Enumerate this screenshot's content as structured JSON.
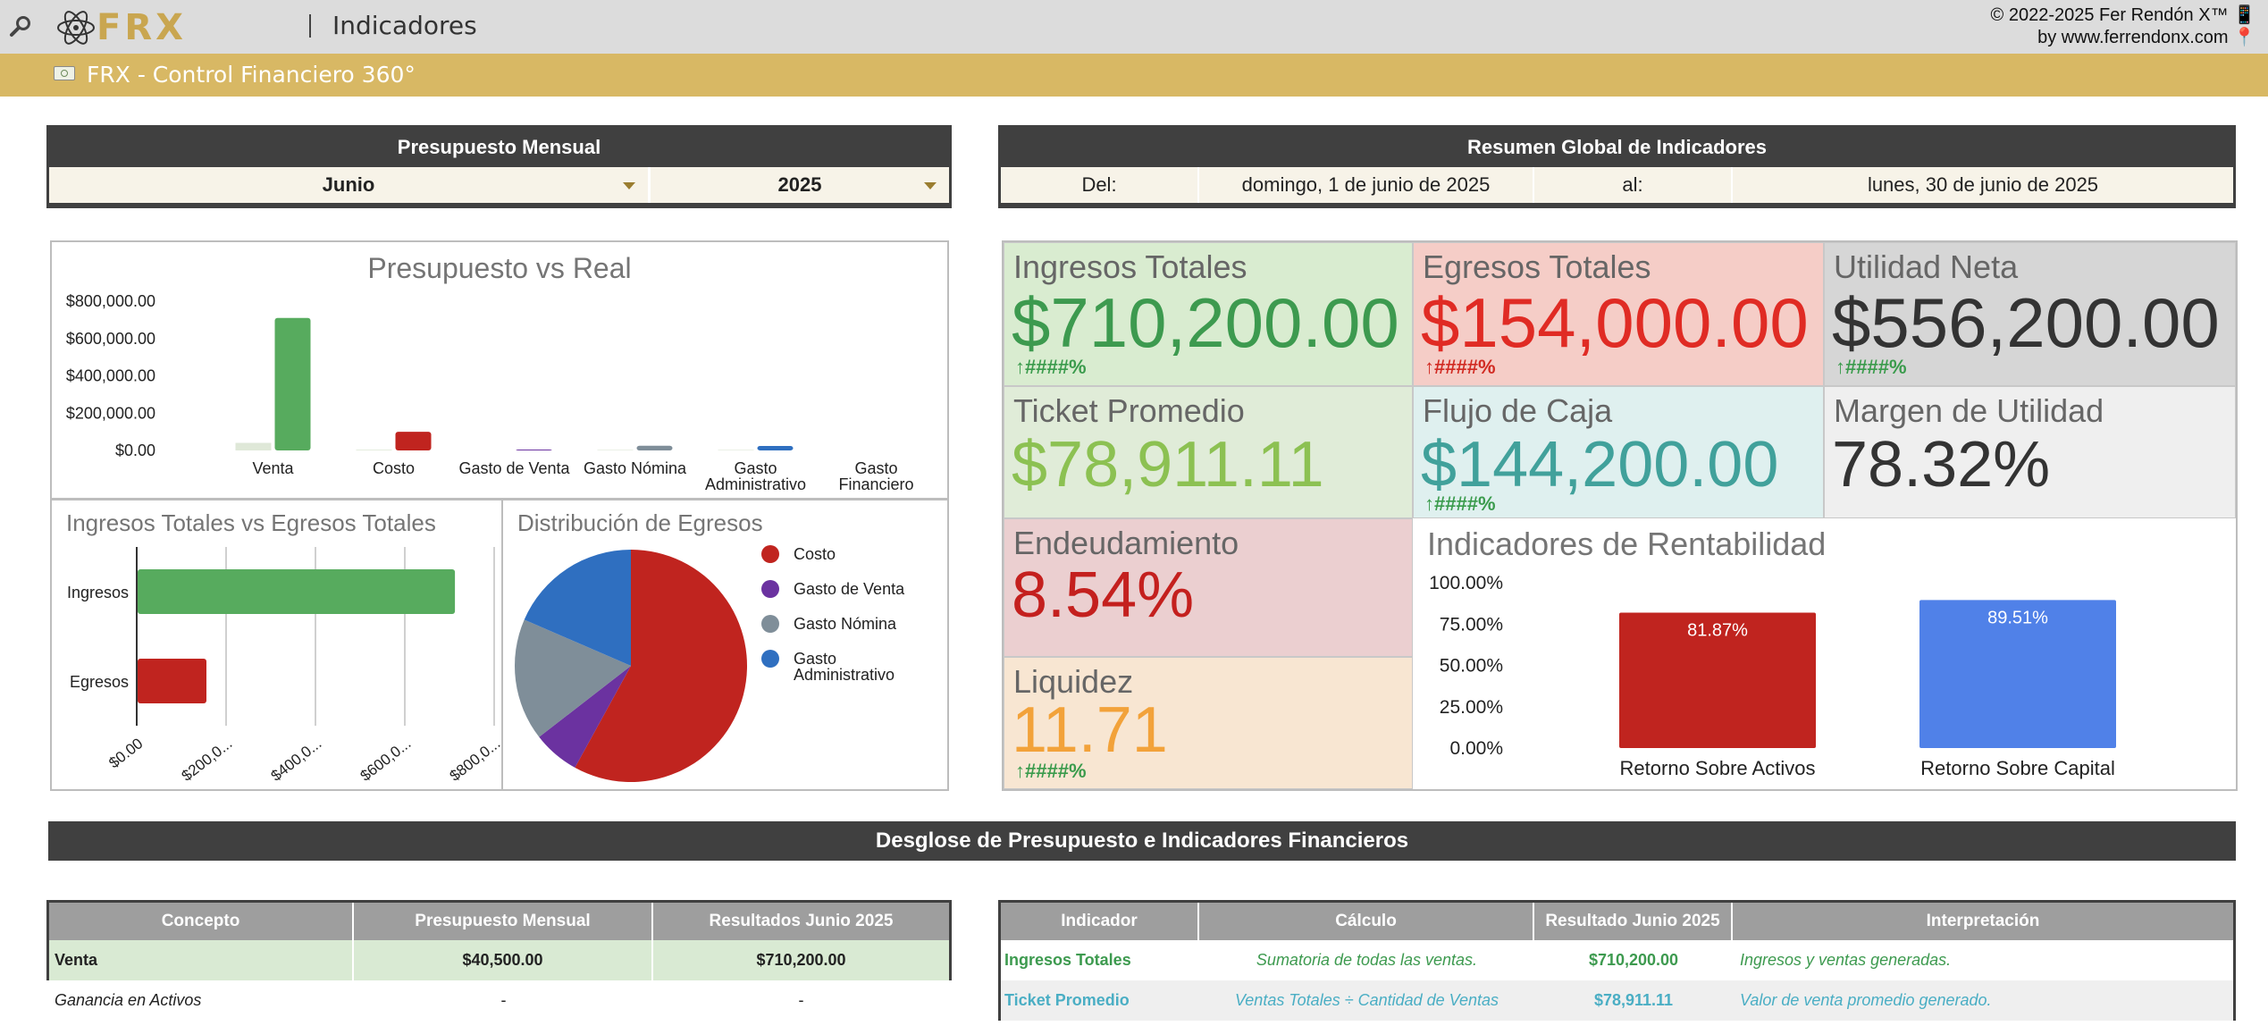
{
  "app": {
    "title": "Indicadores",
    "logo": "FRX",
    "subtitle": "FRX - Control Financiero 360°",
    "copyright_line1": "© 2022-2025 Fer Rendón X™ 📱",
    "copyright_line2": "by www.ferrendonx.com 📍",
    "icons": {
      "search": "magnifier-icon",
      "logo": "atom-icon",
      "subtitle": "money-icon"
    }
  },
  "presupuesto": {
    "header": "Presupuesto Mensual",
    "month": "Junio",
    "year": "2025"
  },
  "resumen": {
    "header": "Resumen Global de Indicadores",
    "del_label": "Del:",
    "del_value": "domingo, 1 de junio de 2025",
    "al_label": "al:",
    "al_value": "lunes, 30 de junio de 2025"
  },
  "kpis": {
    "ingresos": {
      "label": "Ingresos Totales",
      "value": "$710,200.00",
      "trend": "####%"
    },
    "egresos": {
      "label": "Egresos Totales",
      "value": "$154,000.00",
      "trend": "####%"
    },
    "utilidad": {
      "label": "Utilidad Neta",
      "value": "$556,200.00",
      "trend": "####%"
    },
    "ticket": {
      "label": "Ticket Promedio",
      "value": "$78,911.11"
    },
    "flujo": {
      "label": "Flujo de Caja",
      "value": "$144,200.00",
      "trend": "####%"
    },
    "margen": {
      "label": "Margen de Utilidad",
      "value": "78.32%"
    },
    "endeudamiento": {
      "label": "Endeudamiento",
      "value": "8.54%"
    },
    "liquidez": {
      "label": "Liquidez",
      "value": "11.71",
      "trend": "####%"
    }
  },
  "colors": {
    "gold": "#d8b864",
    "dark": "#404040",
    "green": "#57ab5e",
    "red": "#c0241f",
    "gray_series": "#7f8e99",
    "blue": "#2f6fc0",
    "purple": "#6b32a0"
  },
  "chart_data": [
    {
      "type": "bar",
      "title": "Presupuesto vs Real",
      "categories": [
        "Venta",
        "Costo",
        "Gasto de Venta",
        "Gasto Nómina",
        "Gasto Administrativo",
        "Gasto Financiero"
      ],
      "category_lines": [
        [
          "Venta"
        ],
        [
          "Costo"
        ],
        [
          "Gasto de Venta"
        ],
        [
          "Gasto Nómina"
        ],
        [
          "Gasto",
          "Administrativo"
        ],
        [
          "Gasto",
          "Financiero"
        ]
      ],
      "series": [
        {
          "values": [
            40500,
            4000,
            0,
            3000,
            3000,
            0
          ],
          "color": "#dfe8d8"
        },
        {
          "values": [
            710200,
            100000,
            5000,
            25000,
            24000,
            0
          ],
          "color_by_category": [
            "#57ab5e",
            "#c0241f",
            "#6b32a0",
            "#7f8e99",
            "#2f6fc0",
            "#888888"
          ]
        }
      ],
      "yticks": [
        "$0.00",
        "$200,000.00",
        "$400,000.00",
        "$600,000.00",
        "$800,000.00"
      ],
      "ylim": [
        0,
        800000
      ],
      "grid": false
    },
    {
      "type": "bar",
      "orientation": "horizontal",
      "title": "Ingresos Totales vs Egresos Totales",
      "categories": [
        "Ingresos",
        "Egresos"
      ],
      "values": [
        710200,
        154000
      ],
      "colors": [
        "#57ab5e",
        "#c0241f"
      ],
      "xticks": [
        "$0.00",
        "$200,0...",
        "$400,0...",
        "$600,0...",
        "$800,0..."
      ],
      "xlim": [
        0,
        800000
      ],
      "grid": true
    },
    {
      "type": "pie",
      "title": "Distribución de Egresos",
      "labels": [
        "Costo",
        "Gasto de Venta",
        "Gasto Nómina",
        "Gasto Administrativo"
      ],
      "legend_lines": [
        [
          "Costo"
        ],
        [
          "Gasto de Venta"
        ],
        [
          "Gasto Nómina"
        ],
        [
          "Gasto",
          "Administrativo"
        ]
      ],
      "values": [
        58,
        6.5,
        17,
        18.5
      ],
      "colors": [
        "#c0241f",
        "#6b32a0",
        "#7f8e99",
        "#2f6fc0"
      ],
      "legend": "right"
    },
    {
      "type": "bar",
      "title": "Indicadores de Rentabilidad",
      "categories": [
        "Retorno Sobre Activos",
        "Retorno Sobre Capital"
      ],
      "values": [
        81.87,
        89.51
      ],
      "labels": [
        "81.87%",
        "89.51%"
      ],
      "colors": [
        "#c0241f",
        "#5081e8"
      ],
      "yticks": [
        "0.00%",
        "25.00%",
        "50.00%",
        "75.00%",
        "100.00%"
      ],
      "ylim": [
        0,
        100
      ],
      "grid": false
    }
  ],
  "desglose": {
    "header": "Desglose de Presupuesto e Indicadores Financieros",
    "left": {
      "columns": [
        "Concepto",
        "Presupuesto Mensual",
        "Resultados Junio 2025"
      ],
      "rows": [
        {
          "concepto": "Venta",
          "presupuesto": "$40,500.00",
          "resultado": "$710,200.00"
        },
        {
          "concepto": "Ganancia en Activos",
          "presupuesto": "-",
          "resultado": "-"
        }
      ]
    },
    "right": {
      "columns": [
        "Indicador",
        "Cálculo",
        "Resultado Junio 2025",
        "Interpretación"
      ],
      "rows": [
        {
          "indicador": "Ingresos Totales",
          "calculo": "Sumatoria de todas las ventas.",
          "resultado": "$710,200.00",
          "interpretacion": "Ingresos y ventas generadas."
        },
        {
          "indicador": "Ticket Promedio",
          "calculo": "Ventas Totales ÷ Cantidad de Ventas",
          "resultado": "$78,911.11",
          "interpretacion": "Valor de venta promedio generado."
        }
      ]
    }
  }
}
